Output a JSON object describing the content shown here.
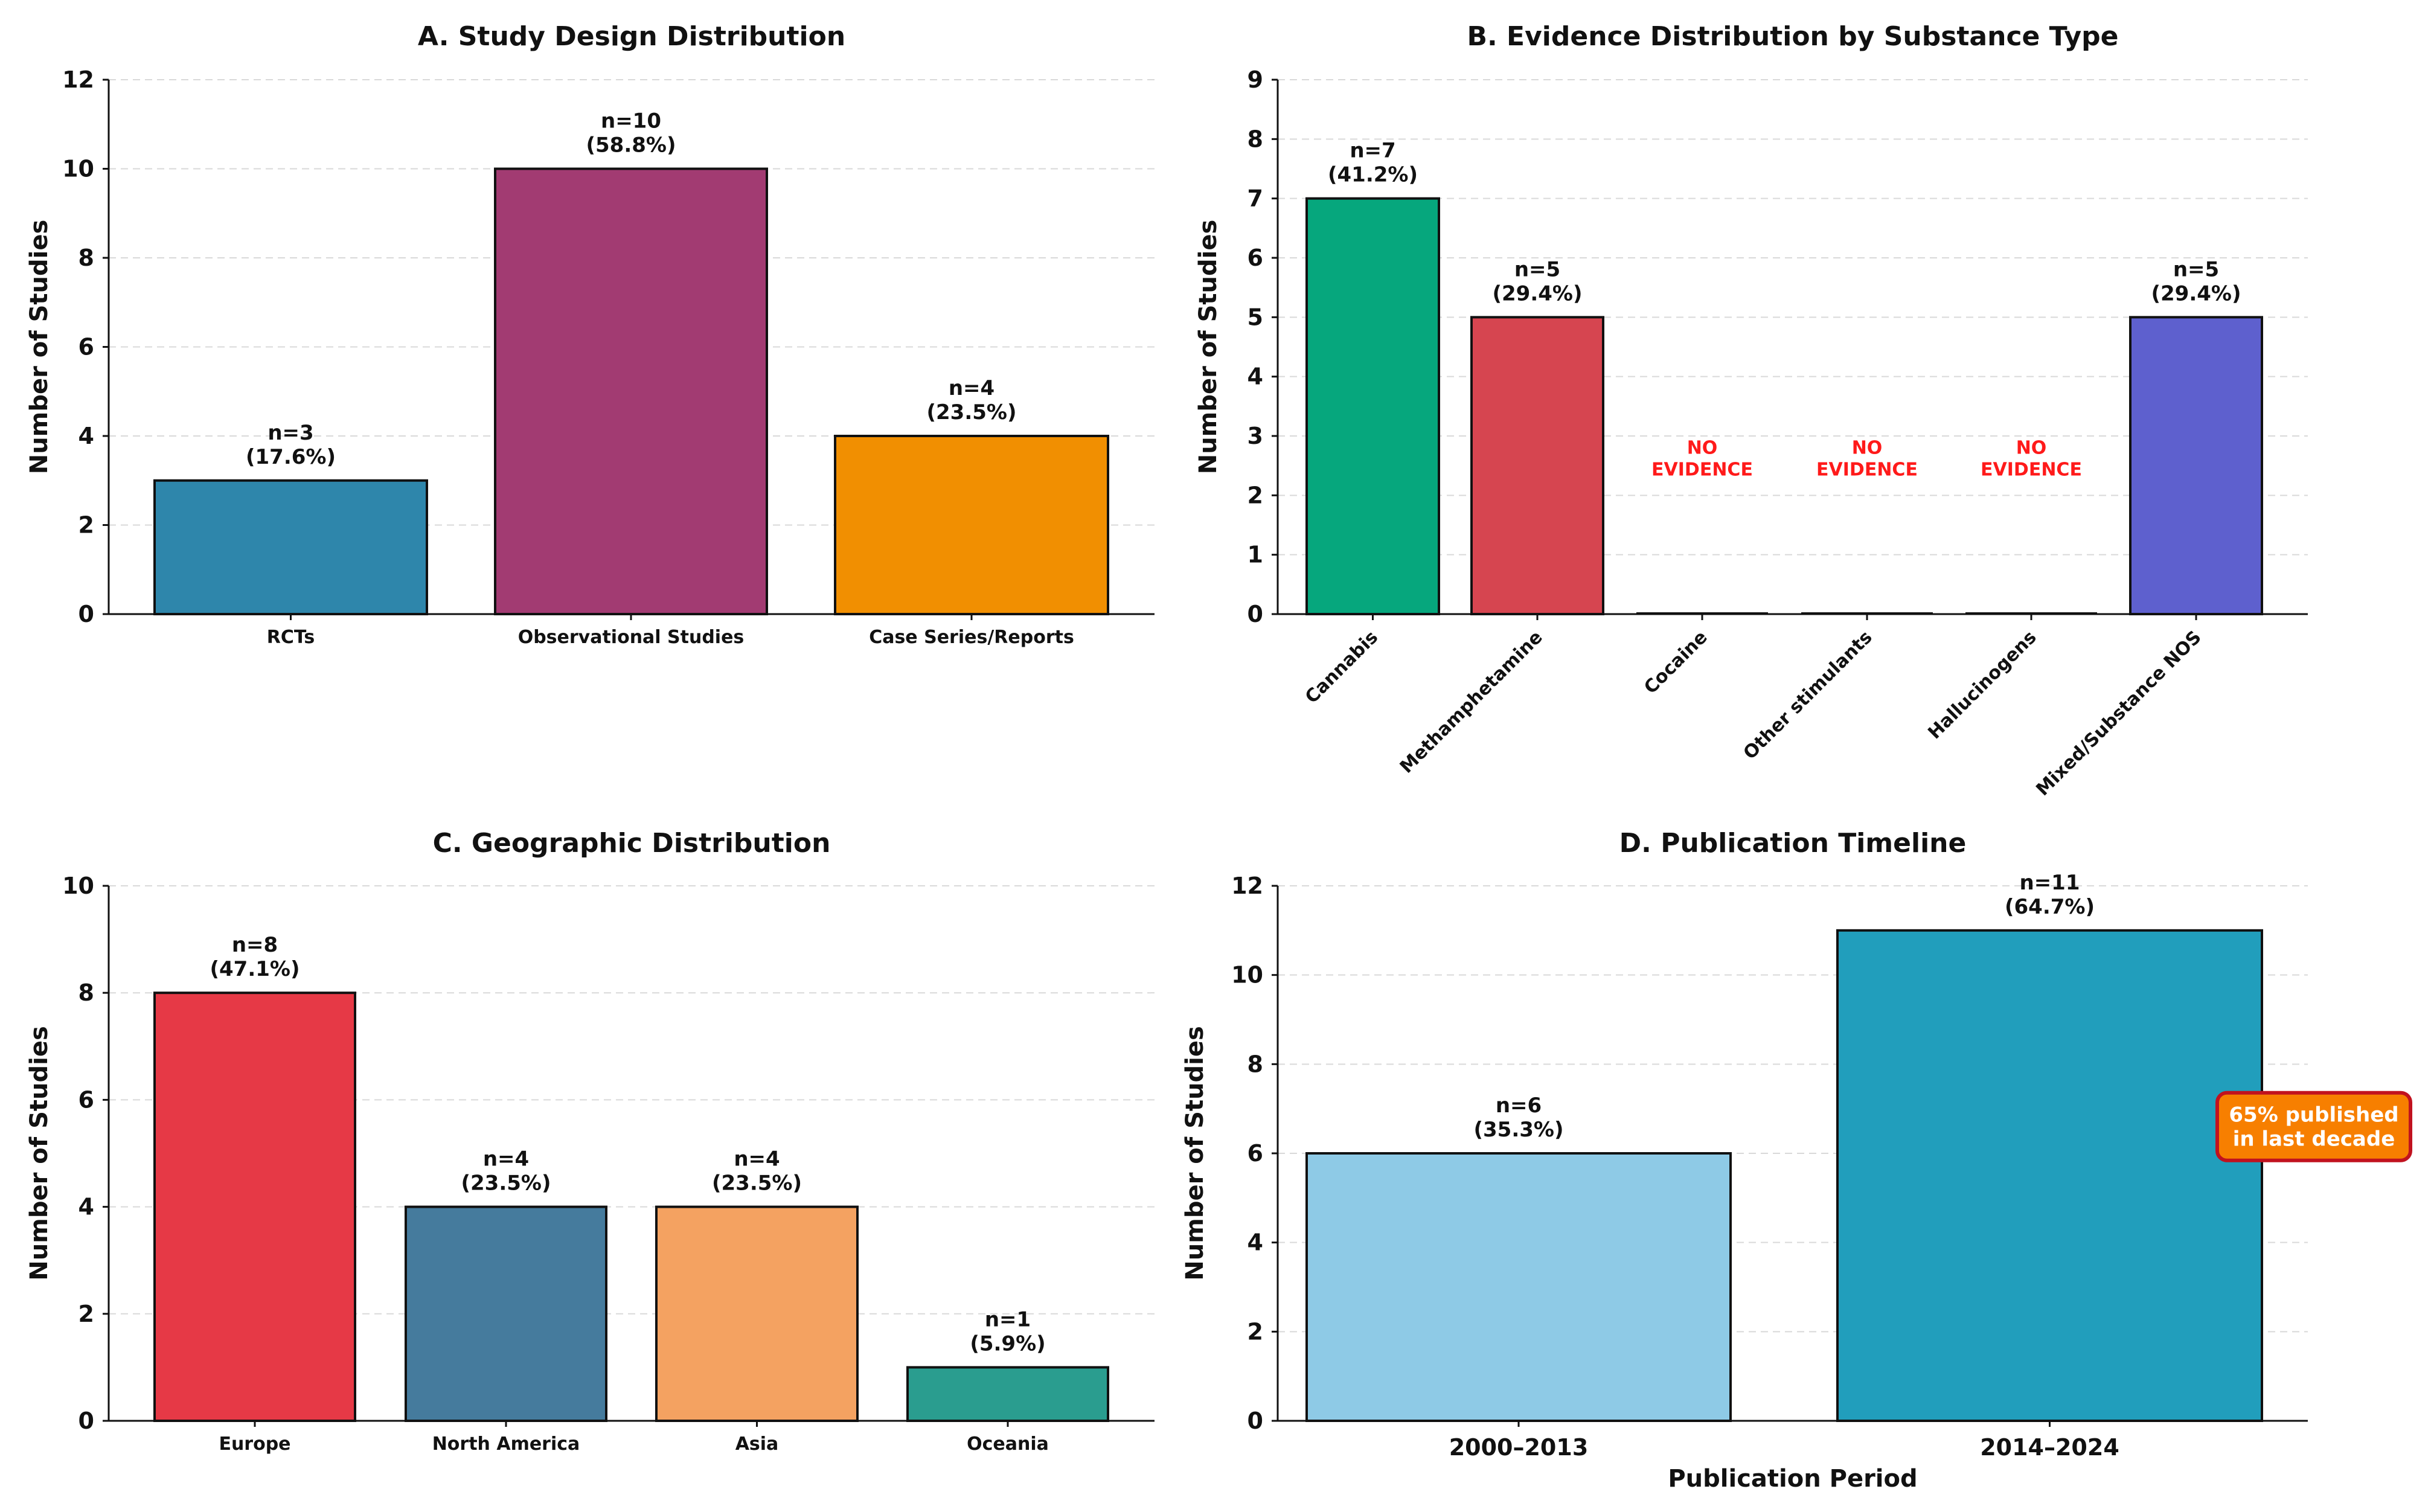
{
  "chart_data": [
    {
      "type": "bar",
      "title": "A. Study Design Distribution",
      "xlabel": "",
      "ylabel": "Number of Studies",
      "ylim": [
        0,
        12
      ],
      "yticks": [
        0,
        2,
        4,
        6,
        8,
        10,
        12
      ],
      "categories": [
        "RCTs",
        "Observational Studies",
        "Case Series/Reports"
      ],
      "values": [
        3,
        10,
        4
      ],
      "value_labels": [
        "n=3\n(17.6%)",
        "n=10\n(58.8%)",
        "n=4\n(23.5%)"
      ],
      "colors": [
        "#2e86ab",
        "#a23b72",
        "#f18f01"
      ],
      "grid": true
    },
    {
      "type": "bar",
      "title": "B. Evidence Distribution by Substance Type",
      "xlabel": "",
      "ylabel": "Number of Studies",
      "ylim": [
        0,
        9
      ],
      "yticks": [
        0,
        1,
        2,
        3,
        4,
        5,
        6,
        7,
        8,
        9
      ],
      "categories": [
        "Cannabis",
        "Methamphetamine",
        "Cocaine",
        "Other stimulants",
        "Hallucinogens",
        "Mixed/Substance NOS"
      ],
      "values": [
        7,
        5,
        0,
        0,
        0,
        5
      ],
      "value_labels": [
        "n=7\n(41.2%)",
        "n=5\n(29.4%)",
        "",
        "",
        "",
        "n=5\n(29.4%)"
      ],
      "no_evidence_label": "NO\nEVIDENCE",
      "colors": [
        "#06a77d",
        "#d64550",
        "#777777",
        "#777777",
        "#777777",
        "#5e60ce"
      ],
      "grid": true
    },
    {
      "type": "bar",
      "title": "C. Geographic Distribution",
      "xlabel": "",
      "ylabel": "Number of Studies",
      "ylim": [
        0,
        10
      ],
      "yticks": [
        0,
        2,
        4,
        6,
        8,
        10
      ],
      "categories": [
        "Europe",
        "North America",
        "Asia",
        "Oceania"
      ],
      "values": [
        8,
        4,
        4,
        1
      ],
      "value_labels": [
        "n=8\n(47.1%)",
        "n=4\n(23.5%)",
        "n=4\n(23.5%)",
        "n=1\n(5.9%)"
      ],
      "colors": [
        "#e63946",
        "#457b9d",
        "#f4a261",
        "#2a9d8f"
      ],
      "grid": true
    },
    {
      "type": "bar",
      "title": "D. Publication Timeline",
      "xlabel": "Publication Period",
      "ylabel": "Number of Studies",
      "ylim": [
        0,
        12
      ],
      "yticks": [
        0,
        2,
        4,
        6,
        8,
        10,
        12
      ],
      "categories": [
        "2000–2013",
        "2014–2024"
      ],
      "values": [
        6,
        11
      ],
      "value_labels": [
        "n=6\n(35.3%)",
        "n=11\n(64.7%)"
      ],
      "colors": [
        "#8ecae6",
        "#219ebc"
      ],
      "annotation": "65% published\nin last decade",
      "annotation_colors": {
        "fill": "#f77f00",
        "edge": "#c1121f"
      },
      "grid": true
    }
  ]
}
